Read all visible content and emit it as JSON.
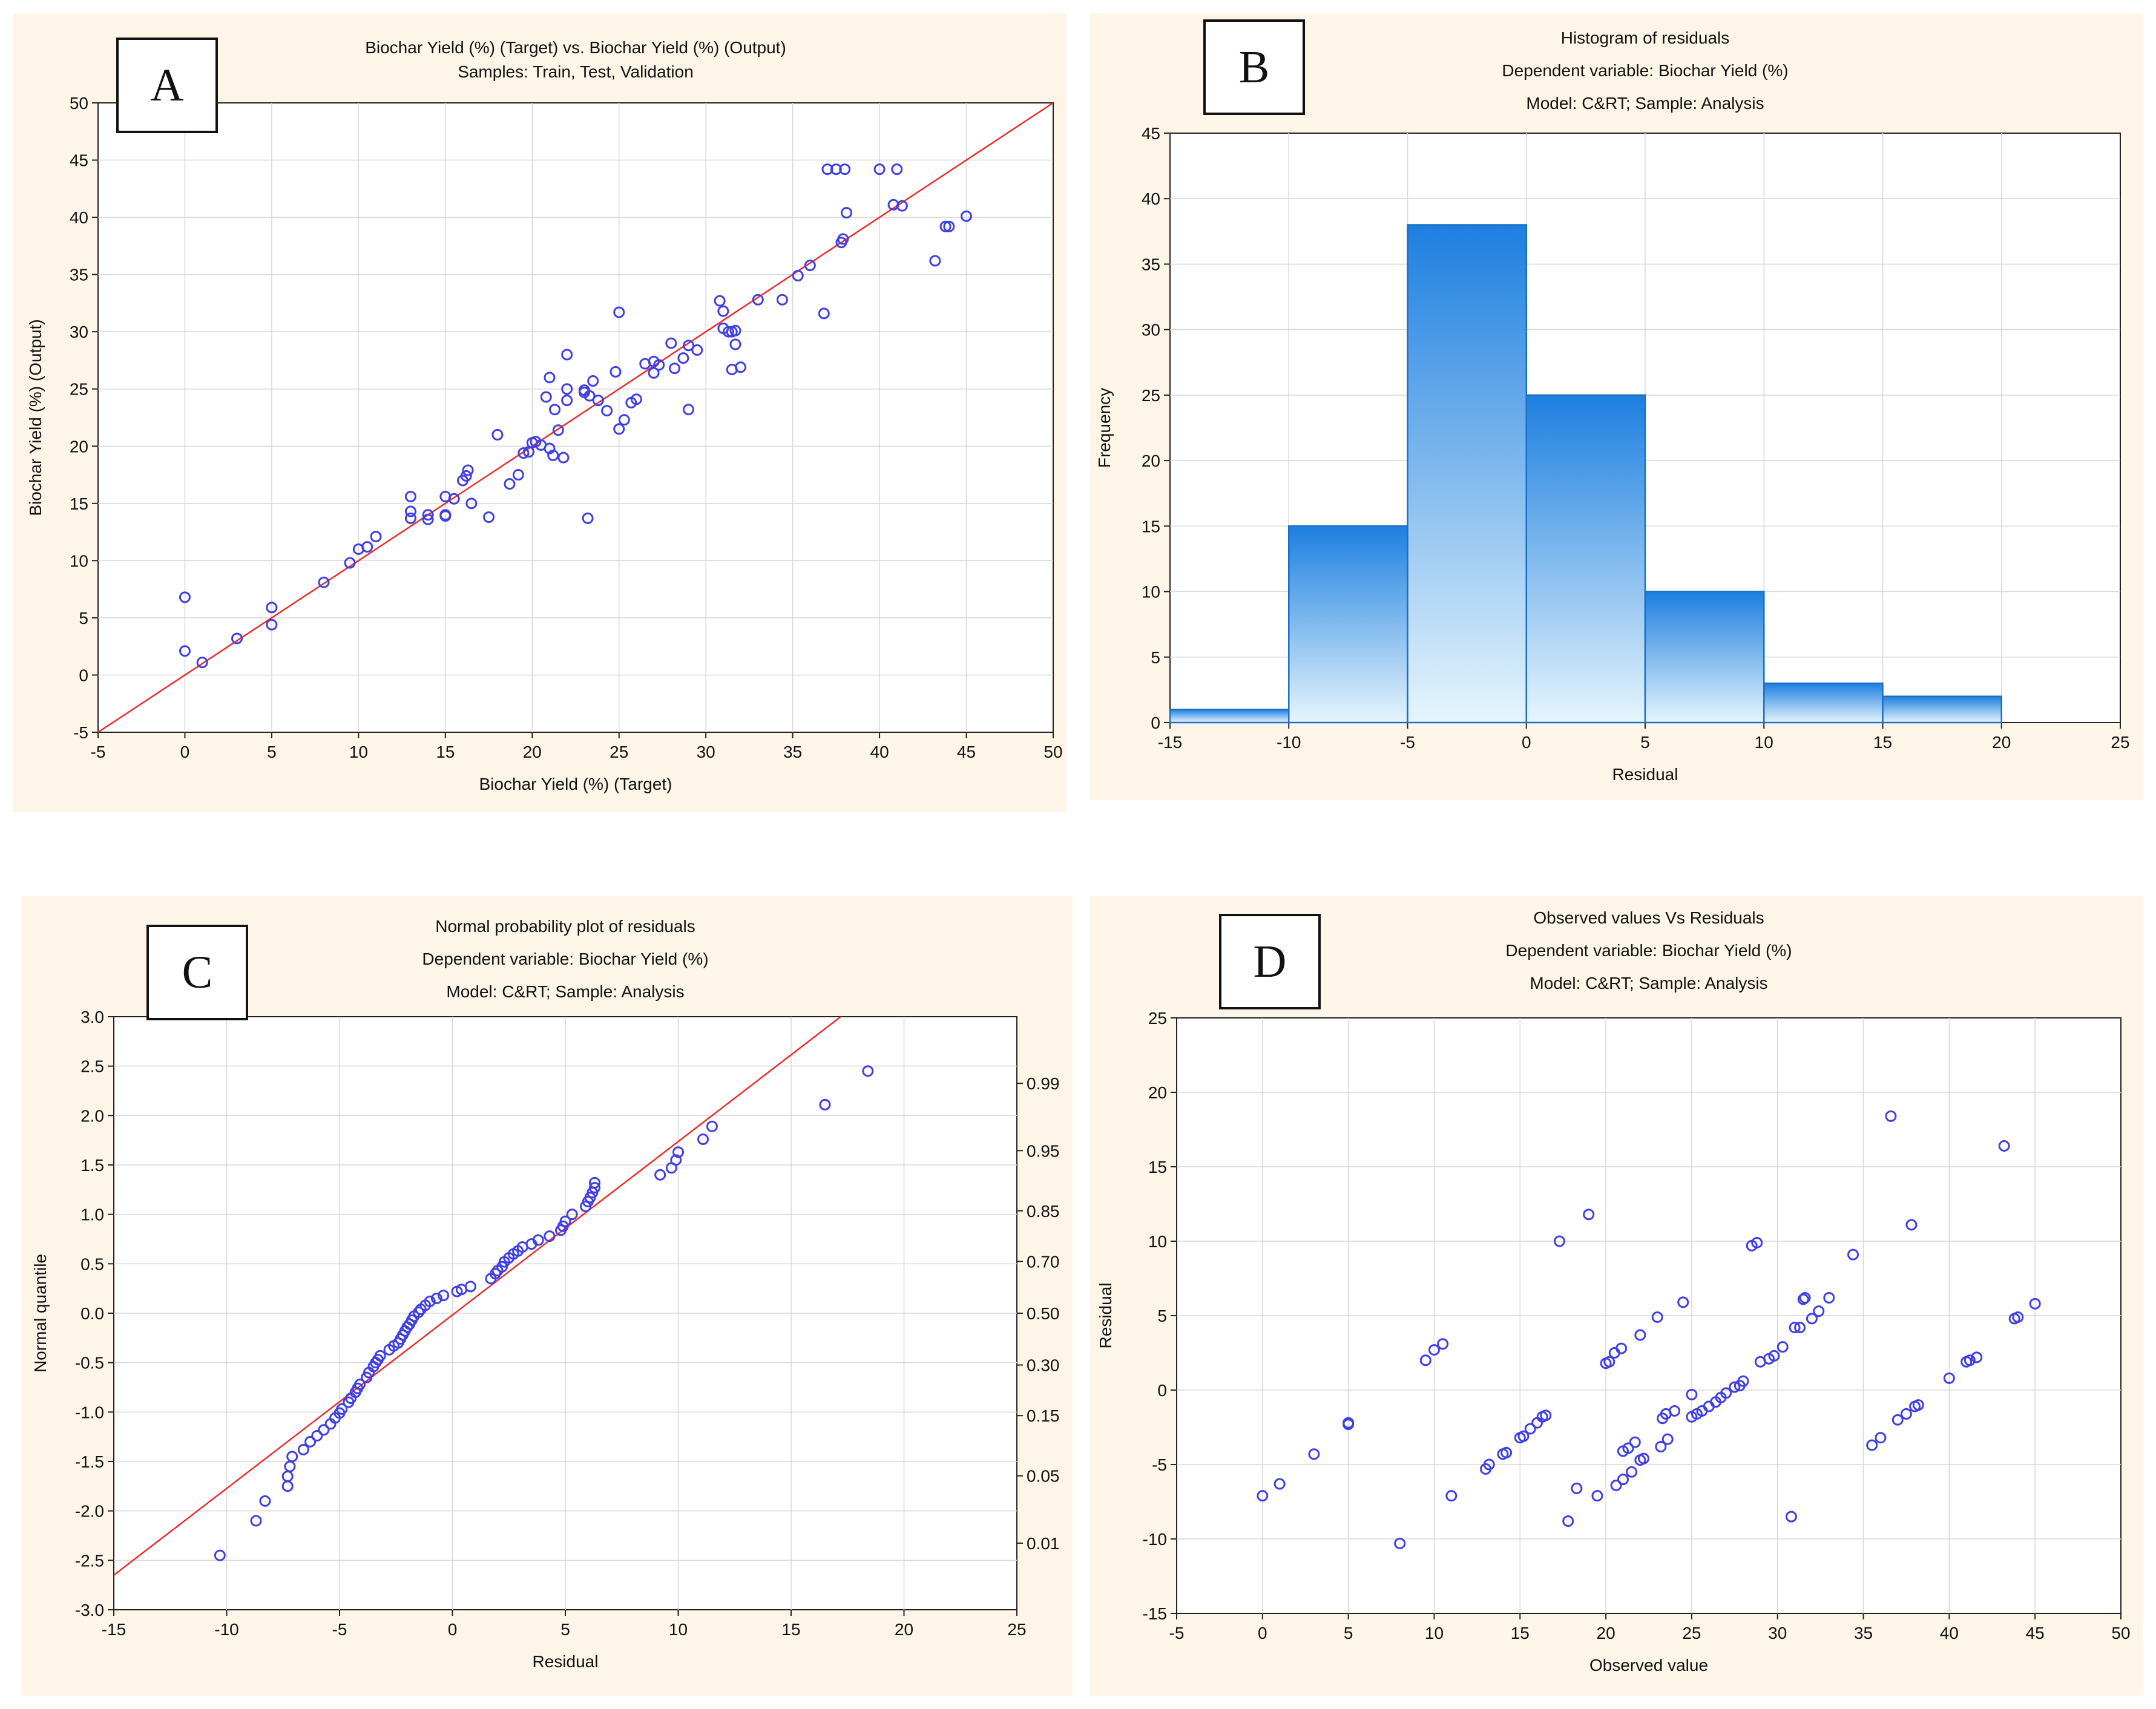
{
  "panels": {
    "A": {
      "label": "A",
      "titles": [
        "Biochar Yield (%) (Target) vs. Biochar Yield (%) (Output)",
        "Samples: Train, Test, Validation"
      ],
      "xlabel": "Biochar Yield (%) (Target)",
      "ylabel": "Biochar Yield (%) (Output)"
    },
    "B": {
      "label": "B",
      "titles": [
        "Histogram of residuals",
        "Dependent variable: Biochar Yield (%)",
        "Model: C&RT; Sample: Analysis"
      ],
      "xlabel": "Residual",
      "ylabel": "Frequency"
    },
    "C": {
      "label": "C",
      "titles": [
        "Normal probability plot of residuals",
        "Dependent variable: Biochar Yield (%)",
        "Model: C&RT; Sample: Analysis"
      ],
      "xlabel": "Residual",
      "ylabel": "Normal quantile"
    },
    "D": {
      "label": "D",
      "titles": [
        "Observed values Vs Residuals",
        "Dependent variable: Biochar Yield (%)",
        "Model: C&RT; Sample: Analysis"
      ],
      "xlabel": "Observed value",
      "ylabel": "Residual"
    }
  },
  "colors": {
    "points": "#3f3fe8",
    "reference_line": "#ee2a2a",
    "bars_top": "#1d7fe0",
    "bars_bottom": "#e6f5fd",
    "panel_bg": "#fdf6e8"
  },
  "chart_data": [
    {
      "id": "A",
      "type": "scatter",
      "title": "Biochar Yield (%) (Target) vs. Biochar Yield (%) (Output)",
      "subtitle": "Samples: Train, Test, Validation",
      "xlabel": "Biochar Yield (%) (Target)",
      "ylabel": "Biochar Yield (%) (Output)",
      "xlim": [
        -5,
        50
      ],
      "ylim": [
        -5,
        50
      ],
      "xticks": [
        -5,
        0,
        5,
        10,
        15,
        20,
        25,
        30,
        35,
        40,
        45,
        50
      ],
      "yticks": [
        -5,
        0,
        5,
        10,
        15,
        20,
        25,
        30,
        35,
        40,
        45,
        50
      ],
      "grid": true,
      "reference_line": {
        "from": [
          -5,
          -5
        ],
        "to": [
          50,
          50
        ]
      },
      "points": [
        [
          0,
          6.8
        ],
        [
          0,
          2.1
        ],
        [
          1,
          1.1
        ],
        [
          3,
          3.2
        ],
        [
          5,
          5.9
        ],
        [
          5,
          4.4
        ],
        [
          8,
          8.1
        ],
        [
          9.5,
          9.8
        ],
        [
          10,
          11
        ],
        [
          10.5,
          11.2
        ],
        [
          11,
          12.1
        ],
        [
          13,
          13.7
        ],
        [
          13,
          14.3
        ],
        [
          13,
          15.6
        ],
        [
          14,
          13.6
        ],
        [
          14,
          14
        ],
        [
          15,
          14
        ],
        [
          15,
          13.9
        ],
        [
          15,
          15.6
        ],
        [
          15.5,
          15.4
        ],
        [
          16,
          17
        ],
        [
          16.2,
          17.4
        ],
        [
          16.3,
          17.9
        ],
        [
          16.5,
          15
        ],
        [
          17.5,
          13.8
        ],
        [
          18,
          21
        ],
        [
          18.7,
          16.7
        ],
        [
          19.2,
          17.5
        ],
        [
          19.5,
          19.4
        ],
        [
          19.8,
          19.5
        ],
        [
          20,
          20.3
        ],
        [
          20.2,
          20.4
        ],
        [
          20.5,
          20.1
        ],
        [
          20.8,
          24.3
        ],
        [
          21,
          19.8
        ],
        [
          21,
          26
        ],
        [
          21.2,
          19.2
        ],
        [
          21.3,
          23.2
        ],
        [
          21.5,
          21.4
        ],
        [
          21.8,
          19
        ],
        [
          22,
          24
        ],
        [
          22,
          25
        ],
        [
          22,
          28
        ],
        [
          23,
          24.7
        ],
        [
          23,
          24.9
        ],
        [
          23.2,
          13.7
        ],
        [
          23.3,
          24.4
        ],
        [
          23.5,
          25.7
        ],
        [
          23.8,
          24
        ],
        [
          24.3,
          23.1
        ],
        [
          24.8,
          26.5
        ],
        [
          25,
          31.7
        ],
        [
          25,
          21.5
        ],
        [
          25.3,
          22.3
        ],
        [
          25.7,
          23.8
        ],
        [
          26,
          24.1
        ],
        [
          26.5,
          27.2
        ],
        [
          27,
          26.4
        ],
        [
          27,
          27.4
        ],
        [
          27.3,
          27.1
        ],
        [
          28,
          29
        ],
        [
          28.2,
          26.8
        ],
        [
          28.7,
          27.7
        ],
        [
          29,
          28.8
        ],
        [
          29,
          23.2
        ],
        [
          29.5,
          28.4
        ],
        [
          30.8,
          32.7
        ],
        [
          31,
          31.8
        ],
        [
          31,
          30.3
        ],
        [
          31.3,
          30
        ],
        [
          31.5,
          30
        ],
        [
          31.5,
          26.7
        ],
        [
          31.7,
          30.1
        ],
        [
          31.7,
          28.9
        ],
        [
          32,
          26.9
        ],
        [
          33,
          32.8
        ],
        [
          34.4,
          32.8
        ],
        [
          35.3,
          34.9
        ],
        [
          36,
          35.8
        ],
        [
          36.8,
          31.6
        ],
        [
          37,
          44.2
        ],
        [
          37.5,
          44.2
        ],
        [
          38,
          44.2
        ],
        [
          37.8,
          37.8
        ],
        [
          37.9,
          38.1
        ],
        [
          38.1,
          40.4
        ],
        [
          40,
          44.2
        ],
        [
          40.8,
          41.1
        ],
        [
          41,
          44.2
        ],
        [
          41.3,
          41
        ],
        [
          43.2,
          36.2
        ],
        [
          43.8,
          39.2
        ],
        [
          44,
          39.2
        ],
        [
          45,
          40.1
        ]
      ]
    },
    {
      "id": "B",
      "type": "bar",
      "title": "Histogram of residuals",
      "subtitle": "Dependent variable: Biochar Yield (%); Model: C&RT; Sample: Analysis",
      "xlabel": "Residual",
      "ylabel": "Frequency",
      "xlim": [
        -15,
        25
      ],
      "ylim": [
        0,
        45
      ],
      "xticks": [
        -15,
        -10,
        -5,
        0,
        5,
        10,
        15,
        20,
        25
      ],
      "yticks": [
        0,
        5,
        10,
        15,
        20,
        25,
        30,
        35,
        40,
        45
      ],
      "grid": true,
      "bins": [
        [
          -15,
          -10
        ],
        [
          -10,
          -5
        ],
        [
          -5,
          0
        ],
        [
          0,
          5
        ],
        [
          5,
          10
        ],
        [
          10,
          15
        ],
        [
          15,
          20
        ]
      ],
      "values": [
        1,
        15,
        38,
        25,
        10,
        3,
        2
      ]
    },
    {
      "id": "C",
      "type": "scatter",
      "title": "Normal probability plot of residuals",
      "subtitle": "Dependent variable: Biochar Yield (%); Model: C&RT; Sample: Analysis",
      "xlabel": "Residual",
      "ylabel": "Normal quantile",
      "xlim": [
        -15,
        25
      ],
      "ylim": [
        -3,
        3
      ],
      "xticks": [
        -15,
        -10,
        -5,
        0,
        5,
        10,
        15,
        20,
        25
      ],
      "yticks": [
        "-3.0",
        "-2.5",
        "-2.0",
        "-1.5",
        "-1.0",
        "-0.5",
        "0.0",
        "0.5",
        "1.0",
        "1.5",
        "2.0",
        "2.5",
        "3.0"
      ],
      "right_axis": {
        "probabilities": [
          "0.01",
          "0.05",
          "0.15",
          "0.30",
          "0.50",
          "0.70",
          "0.85",
          "0.95",
          "0.99"
        ],
        "quantiles": [
          -2.326,
          -1.645,
          -1.036,
          -0.524,
          0,
          0.524,
          1.036,
          1.645,
          2.326
        ]
      },
      "grid": true,
      "reference_line": {
        "from": [
          -15,
          -2.65
        ],
        "to": [
          17.2,
          3
        ]
      },
      "points": [
        [
          -10.3,
          -2.45
        ],
        [
          -8.7,
          -2.1
        ],
        [
          -8.3,
          -1.9
        ],
        [
          -7.3,
          -1.75
        ],
        [
          -7.3,
          -1.65
        ],
        [
          -7.2,
          -1.55
        ],
        [
          -7.1,
          -1.45
        ],
        [
          -6.6,
          -1.38
        ],
        [
          -6.3,
          -1.3
        ],
        [
          -6,
          -1.24
        ],
        [
          -5.7,
          -1.18
        ],
        [
          -5.4,
          -1.12
        ],
        [
          -5.2,
          -1.06
        ],
        [
          -5,
          -1.01
        ],
        [
          -4.9,
          -0.97
        ],
        [
          -4.6,
          -0.9
        ],
        [
          -4.5,
          -0.86
        ],
        [
          -4.3,
          -0.8
        ],
        [
          -4.2,
          -0.76
        ],
        [
          -4.1,
          -0.72
        ],
        [
          -3.8,
          -0.65
        ],
        [
          -3.7,
          -0.6
        ],
        [
          -3.5,
          -0.54
        ],
        [
          -3.4,
          -0.5
        ],
        [
          -3.3,
          -0.47
        ],
        [
          -3.2,
          -0.43
        ],
        [
          -2.8,
          -0.37
        ],
        [
          -2.6,
          -0.33
        ],
        [
          -2.4,
          -0.3
        ],
        [
          -2.3,
          -0.26
        ],
        [
          -2.2,
          -0.22
        ],
        [
          -2.1,
          -0.18
        ],
        [
          -2,
          -0.14
        ],
        [
          -1.9,
          -0.11
        ],
        [
          -1.8,
          -0.07
        ],
        [
          -1.7,
          -0.03
        ],
        [
          -1.5,
          0.01
        ],
        [
          -1.4,
          0.04
        ],
        [
          -1.2,
          0.08
        ],
        [
          -1,
          0.12
        ],
        [
          -0.7,
          0.15
        ],
        [
          -0.4,
          0.18
        ],
        [
          0.2,
          0.22
        ],
        [
          0.4,
          0.24
        ],
        [
          0.8,
          0.27
        ],
        [
          1.7,
          0.35
        ],
        [
          1.9,
          0.4
        ],
        [
          2,
          0.43
        ],
        [
          2.2,
          0.47
        ],
        [
          2.3,
          0.52
        ],
        [
          2.5,
          0.56
        ],
        [
          2.7,
          0.6
        ],
        [
          2.9,
          0.63
        ],
        [
          3.1,
          0.67
        ],
        [
          3.5,
          0.7
        ],
        [
          3.8,
          0.74
        ],
        [
          4.3,
          0.78
        ],
        [
          4.8,
          0.84
        ],
        [
          4.9,
          0.88
        ],
        [
          5,
          0.93
        ],
        [
          5.3,
          1
        ],
        [
          5.9,
          1.08
        ],
        [
          6,
          1.13
        ],
        [
          6.1,
          1.17
        ],
        [
          6.2,
          1.22
        ],
        [
          6.3,
          1.27
        ],
        [
          6.3,
          1.32
        ],
        [
          9.2,
          1.4
        ],
        [
          9.7,
          1.47
        ],
        [
          9.9,
          1.55
        ],
        [
          10,
          1.63
        ],
        [
          11.1,
          1.76
        ],
        [
          11.5,
          1.89
        ],
        [
          16.5,
          2.11
        ],
        [
          18.4,
          2.45
        ]
      ]
    },
    {
      "id": "D",
      "type": "scatter",
      "title": "Observed values Vs Residuals",
      "subtitle": "Dependent variable: Biochar Yield (%); Model: C&RT; Sample: Analysis",
      "xlabel": "Observed value",
      "ylabel": "Residual",
      "xlim": [
        -5,
        50
      ],
      "ylim": [
        -15,
        25
      ],
      "xticks": [
        -5,
        0,
        5,
        10,
        15,
        20,
        25,
        30,
        35,
        40,
        45,
        50
      ],
      "yticks": [
        -15,
        -10,
        -5,
        0,
        5,
        10,
        15,
        20,
        25
      ],
      "grid": true,
      "points": [
        [
          0,
          -7.1
        ],
        [
          1,
          -6.3
        ],
        [
          3,
          -4.3
        ],
        [
          5,
          -2.3
        ],
        [
          5,
          -2.2
        ],
        [
          8,
          -10.3
        ],
        [
          9.5,
          2
        ],
        [
          10,
          2.7
        ],
        [
          10.5,
          3.1
        ],
        [
          11,
          -7.1
        ],
        [
          13,
          -5.3
        ],
        [
          13.2,
          -5
        ],
        [
          14,
          -4.3
        ],
        [
          14.2,
          -4.2
        ],
        [
          15,
          -3.2
        ],
        [
          15.2,
          -3.1
        ],
        [
          15.6,
          -2.6
        ],
        [
          16,
          -2.2
        ],
        [
          16.3,
          -1.8
        ],
        [
          16.5,
          -1.7
        ],
        [
          17.3,
          10
        ],
        [
          17.8,
          -8.8
        ],
        [
          18.3,
          -6.6
        ],
        [
          19,
          11.8
        ],
        [
          19.5,
          -7.1
        ],
        [
          20,
          1.8
        ],
        [
          20.2,
          1.9
        ],
        [
          20.5,
          2.5
        ],
        [
          20.6,
          -6.4
        ],
        [
          20.9,
          2.8
        ],
        [
          21,
          -6
        ],
        [
          21,
          -4.1
        ],
        [
          21.3,
          -3.9
        ],
        [
          21.5,
          -5.5
        ],
        [
          21.7,
          -3.5
        ],
        [
          22,
          3.7
        ],
        [
          22,
          -4.7
        ],
        [
          22.2,
          -4.6
        ],
        [
          23,
          4.9
        ],
        [
          23.2,
          -3.8
        ],
        [
          23.3,
          -1.9
        ],
        [
          23.5,
          -1.6
        ],
        [
          23.6,
          -3.3
        ],
        [
          24,
          -1.4
        ],
        [
          24.5,
          5.9
        ],
        [
          25,
          -0.3
        ],
        [
          25,
          -1.8
        ],
        [
          25.3,
          -1.6
        ],
        [
          25.6,
          -1.4
        ],
        [
          26,
          -1.1
        ],
        [
          26.4,
          -0.8
        ],
        [
          26.7,
          -0.5
        ],
        [
          27,
          -0.2
        ],
        [
          27.5,
          0.2
        ],
        [
          27.8,
          0.3
        ],
        [
          28,
          0.6
        ],
        [
          28.5,
          9.7
        ],
        [
          28.8,
          9.9
        ],
        [
          29,
          1.9
        ],
        [
          29.5,
          2.1
        ],
        [
          29.8,
          2.3
        ],
        [
          30.3,
          2.9
        ],
        [
          30.8,
          -8.5
        ],
        [
          31,
          4.2
        ],
        [
          31.3,
          4.2
        ],
        [
          31.5,
          6.1
        ],
        [
          31.6,
          6.2
        ],
        [
          32,
          4.8
        ],
        [
          32.4,
          5.3
        ],
        [
          33,
          6.2
        ],
        [
          34.4,
          9.1
        ],
        [
          35.5,
          -3.7
        ],
        [
          36,
          -3.2
        ],
        [
          36.6,
          18.4
        ],
        [
          37,
          -2
        ],
        [
          37.5,
          -1.6
        ],
        [
          37.8,
          11.1
        ],
        [
          38,
          -1.1
        ],
        [
          38.2,
          -1
        ],
        [
          40,
          0.8
        ],
        [
          41,
          1.9
        ],
        [
          41.2,
          2
        ],
        [
          41.6,
          2.2
        ],
        [
          43.2,
          16.4
        ],
        [
          43.8,
          4.8
        ],
        [
          44,
          4.9
        ],
        [
          45,
          5.8
        ]
      ]
    }
  ]
}
